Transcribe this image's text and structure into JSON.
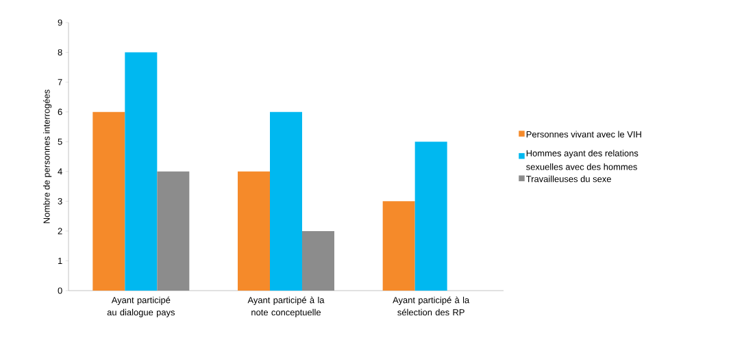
{
  "chart_data": {
    "type": "bar",
    "ylabel": "Nombre de personnes interrogées",
    "categories": [
      "Ayant participé au dialogue pays",
      "Ayant participé à la note conceptuelle",
      "Ayant participé à la sélection des RP"
    ],
    "series": [
      {
        "name": "Personnes vivant avec le VIH",
        "color": "#f58a2a",
        "values": [
          6,
          4,
          3
        ]
      },
      {
        "name": "Hommes ayant des relations sexuelles avec des hommes",
        "color": "#00b8f0",
        "values": [
          8,
          6,
          5
        ]
      },
      {
        "name": "Travailleuses du sexe",
        "color": "#8c8c8c",
        "values": [
          4,
          2,
          0
        ]
      }
    ],
    "ylim": [
      0,
      9
    ],
    "yticks": [
      0,
      1,
      2,
      3,
      4,
      5,
      6,
      7,
      8,
      9
    ],
    "grid": false,
    "legend": "right"
  }
}
